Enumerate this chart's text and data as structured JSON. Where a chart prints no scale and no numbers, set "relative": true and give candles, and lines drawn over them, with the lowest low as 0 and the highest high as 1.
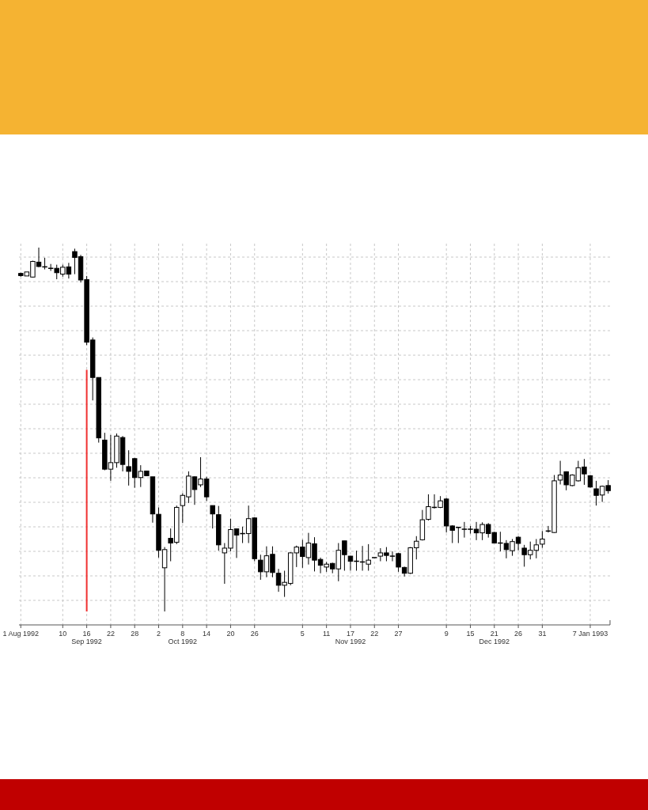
{
  "chart_data": {
    "type": "candlestick",
    "relative": true,
    "grid": true,
    "categories": [
      "1 Aug 1992",
      null,
      null,
      null,
      null,
      null,
      null,
      "10",
      null,
      null,
      null,
      "16\nSep 1992",
      null,
      null,
      null,
      "22",
      null,
      null,
      null,
      "28",
      null,
      null,
      null,
      "2",
      null,
      null,
      null,
      "8\nOct 1992",
      null,
      null,
      null,
      "14",
      null,
      null,
      null,
      "20",
      null,
      null,
      null,
      "26",
      null,
      null,
      null,
      null,
      null,
      null,
      null,
      "5",
      null,
      null,
      null,
      "11",
      null,
      null,
      null,
      "17\nNov 1992",
      null,
      null,
      null,
      "22",
      null,
      null,
      null,
      "27",
      null,
      null,
      null,
      null,
      null,
      null,
      null,
      "9",
      null,
      null,
      null,
      "15",
      null,
      null,
      null,
      "21\nDec 1992",
      null,
      null,
      null,
      "26",
      null,
      null,
      null,
      "31",
      null,
      null,
      null,
      null,
      null,
      null,
      null,
      "7 Jan 1993",
      null,
      null,
      null
    ],
    "ohlc": [
      [
        0.929,
        0.931,
        0.92,
        0.923
      ],
      [
        0.922,
        0.934,
        0.921,
        0.933
      ],
      [
        0.919,
        0.964,
        0.918,
        0.962
      ],
      [
        0.96,
        1.0,
        0.946,
        0.948
      ],
      [
        0.947,
        0.972,
        0.94,
        0.947
      ],
      [
        0.943,
        0.955,
        0.936,
        0.943
      ],
      [
        0.943,
        0.953,
        0.913,
        0.931
      ],
      [
        0.927,
        0.953,
        0.92,
        0.946
      ],
      [
        0.947,
        0.958,
        0.915,
        0.927
      ],
      [
        0.989,
        0.997,
        0.927,
        0.973
      ],
      [
        0.975,
        0.98,
        0.904,
        0.911
      ],
      [
        0.912,
        0.922,
        0.732,
        0.74
      ],
      [
        0.746,
        0.753,
        0.58,
        0.643
      ],
      [
        0.643,
        0.643,
        0.464,
        0.477
      ],
      [
        0.471,
        0.491,
        0.388,
        0.391
      ],
      [
        0.391,
        0.485,
        0.359,
        0.409
      ],
      [
        0.409,
        0.489,
        0.395,
        0.482
      ],
      [
        0.478,
        0.482,
        0.385,
        0.404
      ],
      [
        0.398,
        0.443,
        0.346,
        0.385
      ],
      [
        0.42,
        0.422,
        0.34,
        0.368
      ],
      [
        0.368,
        0.402,
        0.342,
        0.385
      ],
      [
        0.386,
        0.386,
        0.373,
        0.373
      ],
      [
        0.37,
        0.37,
        0.244,
        0.268
      ],
      [
        0.267,
        0.286,
        0.148,
        0.168
      ],
      [
        0.12,
        0.177,
        0.0,
        0.17
      ],
      [
        0.201,
        0.228,
        0.138,
        0.188
      ],
      [
        0.19,
        0.291,
        0.185,
        0.286
      ],
      [
        0.291,
        0.325,
        0.243,
        0.319
      ],
      [
        0.315,
        0.385,
        0.298,
        0.372
      ],
      [
        0.37,
        0.371,
        0.293,
        0.335
      ],
      [
        0.348,
        0.424,
        0.342,
        0.364
      ],
      [
        0.364,
        0.37,
        0.304,
        0.315
      ],
      [
        0.291,
        0.291,
        0.228,
        0.268
      ],
      [
        0.266,
        0.29,
        0.167,
        0.183
      ],
      [
        0.161,
        0.188,
        0.076,
        0.174
      ],
      [
        0.174,
        0.255,
        0.165,
        0.225
      ],
      [
        0.227,
        0.228,
        0.147,
        0.21
      ],
      [
        0.214,
        0.233,
        0.188,
        0.214
      ],
      [
        0.214,
        0.291,
        0.188,
        0.255
      ],
      [
        0.257,
        0.259,
        0.138,
        0.145
      ],
      [
        0.141,
        0.156,
        0.087,
        0.109
      ],
      [
        0.109,
        0.179,
        0.094,
        0.153
      ],
      [
        0.157,
        0.179,
        0.094,
        0.107
      ],
      [
        0.105,
        0.117,
        0.054,
        0.072
      ],
      [
        0.072,
        0.112,
        0.04,
        0.08
      ],
      [
        0.077,
        0.163,
        0.072,
        0.161
      ],
      [
        0.161,
        0.181,
        0.122,
        0.177
      ],
      [
        0.177,
        0.197,
        0.12,
        0.151
      ],
      [
        0.148,
        0.216,
        0.129,
        0.188
      ],
      [
        0.186,
        0.204,
        0.11,
        0.141
      ],
      [
        0.143,
        0.148,
        0.105,
        0.127
      ],
      [
        0.122,
        0.136,
        0.109,
        0.13
      ],
      [
        0.132,
        0.134,
        0.105,
        0.117
      ],
      [
        0.117,
        0.188,
        0.083,
        0.168
      ],
      [
        0.194,
        0.194,
        0.112,
        0.156
      ],
      [
        0.152,
        0.153,
        0.112,
        0.138
      ],
      [
        0.138,
        0.167,
        0.112,
        0.138
      ],
      [
        0.136,
        0.18,
        0.112,
        0.136
      ],
      [
        0.13,
        0.185,
        0.112,
        0.141
      ],
      [
        0.148,
        0.149,
        0.147,
        0.148
      ],
      [
        0.152,
        0.174,
        0.138,
        0.161
      ],
      [
        0.161,
        0.177,
        0.138,
        0.154
      ],
      [
        0.152,
        0.165,
        0.138,
        0.152
      ],
      [
        0.159,
        0.161,
        0.109,
        0.122
      ],
      [
        0.121,
        0.123,
        0.096,
        0.105
      ],
      [
        0.105,
        0.177,
        0.103,
        0.175
      ],
      [
        0.175,
        0.207,
        0.143,
        0.193
      ],
      [
        0.197,
        0.279,
        0.195,
        0.252
      ],
      [
        0.253,
        0.322,
        0.25,
        0.288
      ],
      [
        0.286,
        0.322,
        0.283,
        0.286
      ],
      [
        0.286,
        0.317,
        0.284,
        0.304
      ],
      [
        0.309,
        0.312,
        0.217,
        0.235
      ],
      [
        0.235,
        0.237,
        0.188,
        0.223
      ],
      [
        0.231,
        0.232,
        0.188,
        0.231
      ],
      [
        0.226,
        0.246,
        0.203,
        0.226
      ],
      [
        0.226,
        0.235,
        0.214,
        0.226
      ],
      [
        0.226,
        0.246,
        0.196,
        0.216
      ],
      [
        0.216,
        0.245,
        0.196,
        0.239
      ],
      [
        0.239,
        0.243,
        0.203,
        0.214
      ],
      [
        0.217,
        0.219,
        0.187,
        0.188
      ],
      [
        0.188,
        0.219,
        0.165,
        0.188
      ],
      [
        0.187,
        0.196,
        0.146,
        0.17
      ],
      [
        0.167,
        0.199,
        0.153,
        0.192
      ],
      [
        0.204,
        0.207,
        0.168,
        0.187
      ],
      [
        0.174,
        0.183,
        0.123,
        0.156
      ],
      [
        0.156,
        0.192,
        0.143,
        0.168
      ],
      [
        0.168,
        0.199,
        0.146,
        0.183
      ],
      [
        0.185,
        0.221,
        0.175,
        0.199
      ],
      [
        0.221,
        0.235,
        0.217,
        0.221
      ],
      [
        0.217,
        0.375,
        0.216,
        0.359
      ],
      [
        0.361,
        0.414,
        0.349,
        0.375
      ],
      [
        0.384,
        0.385,
        0.333,
        0.348
      ],
      [
        0.346,
        0.377,
        0.344,
        0.375
      ],
      [
        0.359,
        0.414,
        0.357,
        0.395
      ],
      [
        0.397,
        0.419,
        0.348,
        0.378
      ],
      [
        0.373,
        0.375,
        0.34,
        0.342
      ],
      [
        0.337,
        0.359,
        0.291,
        0.319
      ],
      [
        0.32,
        0.346,
        0.301,
        0.344
      ],
      [
        0.346,
        0.361,
        0.324,
        0.332
      ]
    ],
    "series": [
      {
        "type": "line",
        "x": [
          "16\nSep 1992",
          "16\nSep 1992"
        ],
        "values": [
          0.664,
          0
        ],
        "color": "#f03030"
      }
    ]
  }
}
